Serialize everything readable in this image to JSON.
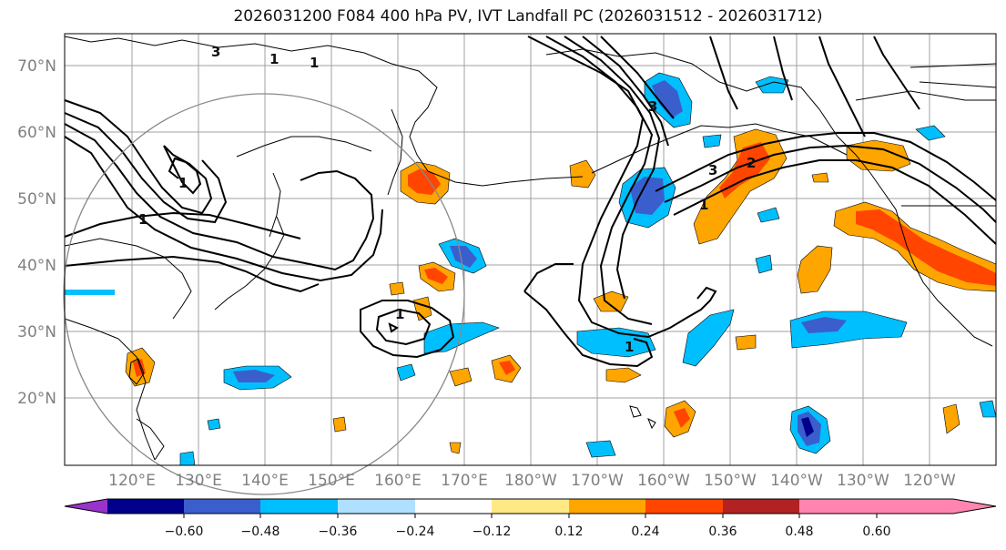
{
  "title": "2026031200 F084 400 hPa PV, IVT Landfall PC (2026031512 - 2026031712)",
  "lat_labels": [
    "70°N",
    "60°N",
    "50°N",
    "40°N",
    "30°N",
    "20°N"
  ],
  "lon_labels": [
    "120°E",
    "130°E",
    "140°E",
    "150°E",
    "160°E",
    "170°E",
    "180°W",
    "170°W",
    "160°W",
    "150°W",
    "140°W",
    "130°W",
    "120°W"
  ],
  "colorbar": {
    "ticks": [
      "−0.60",
      "−0.48",
      "−0.36",
      "−0.24",
      "−0.12",
      "0.12",
      "0.24",
      "0.36",
      "0.48",
      "0.60"
    ],
    "colors": [
      "#9933cc",
      "#00008b",
      "#3a5fcd",
      "#00bfff",
      "#b0e0ff",
      "#ffffff",
      "#ffe985",
      "#ffa500",
      "#ff4500",
      "#b22222",
      "#ff85b0"
    ]
  },
  "contour_labels": [
    "1",
    "1",
    "3",
    "1",
    "1",
    "3",
    "3",
    "2",
    "1",
    "1",
    "1"
  ],
  "colors": {
    "grid": "#a0a0a0",
    "coast": "#000000",
    "contour": "#000000",
    "circle": "#888888"
  }
}
